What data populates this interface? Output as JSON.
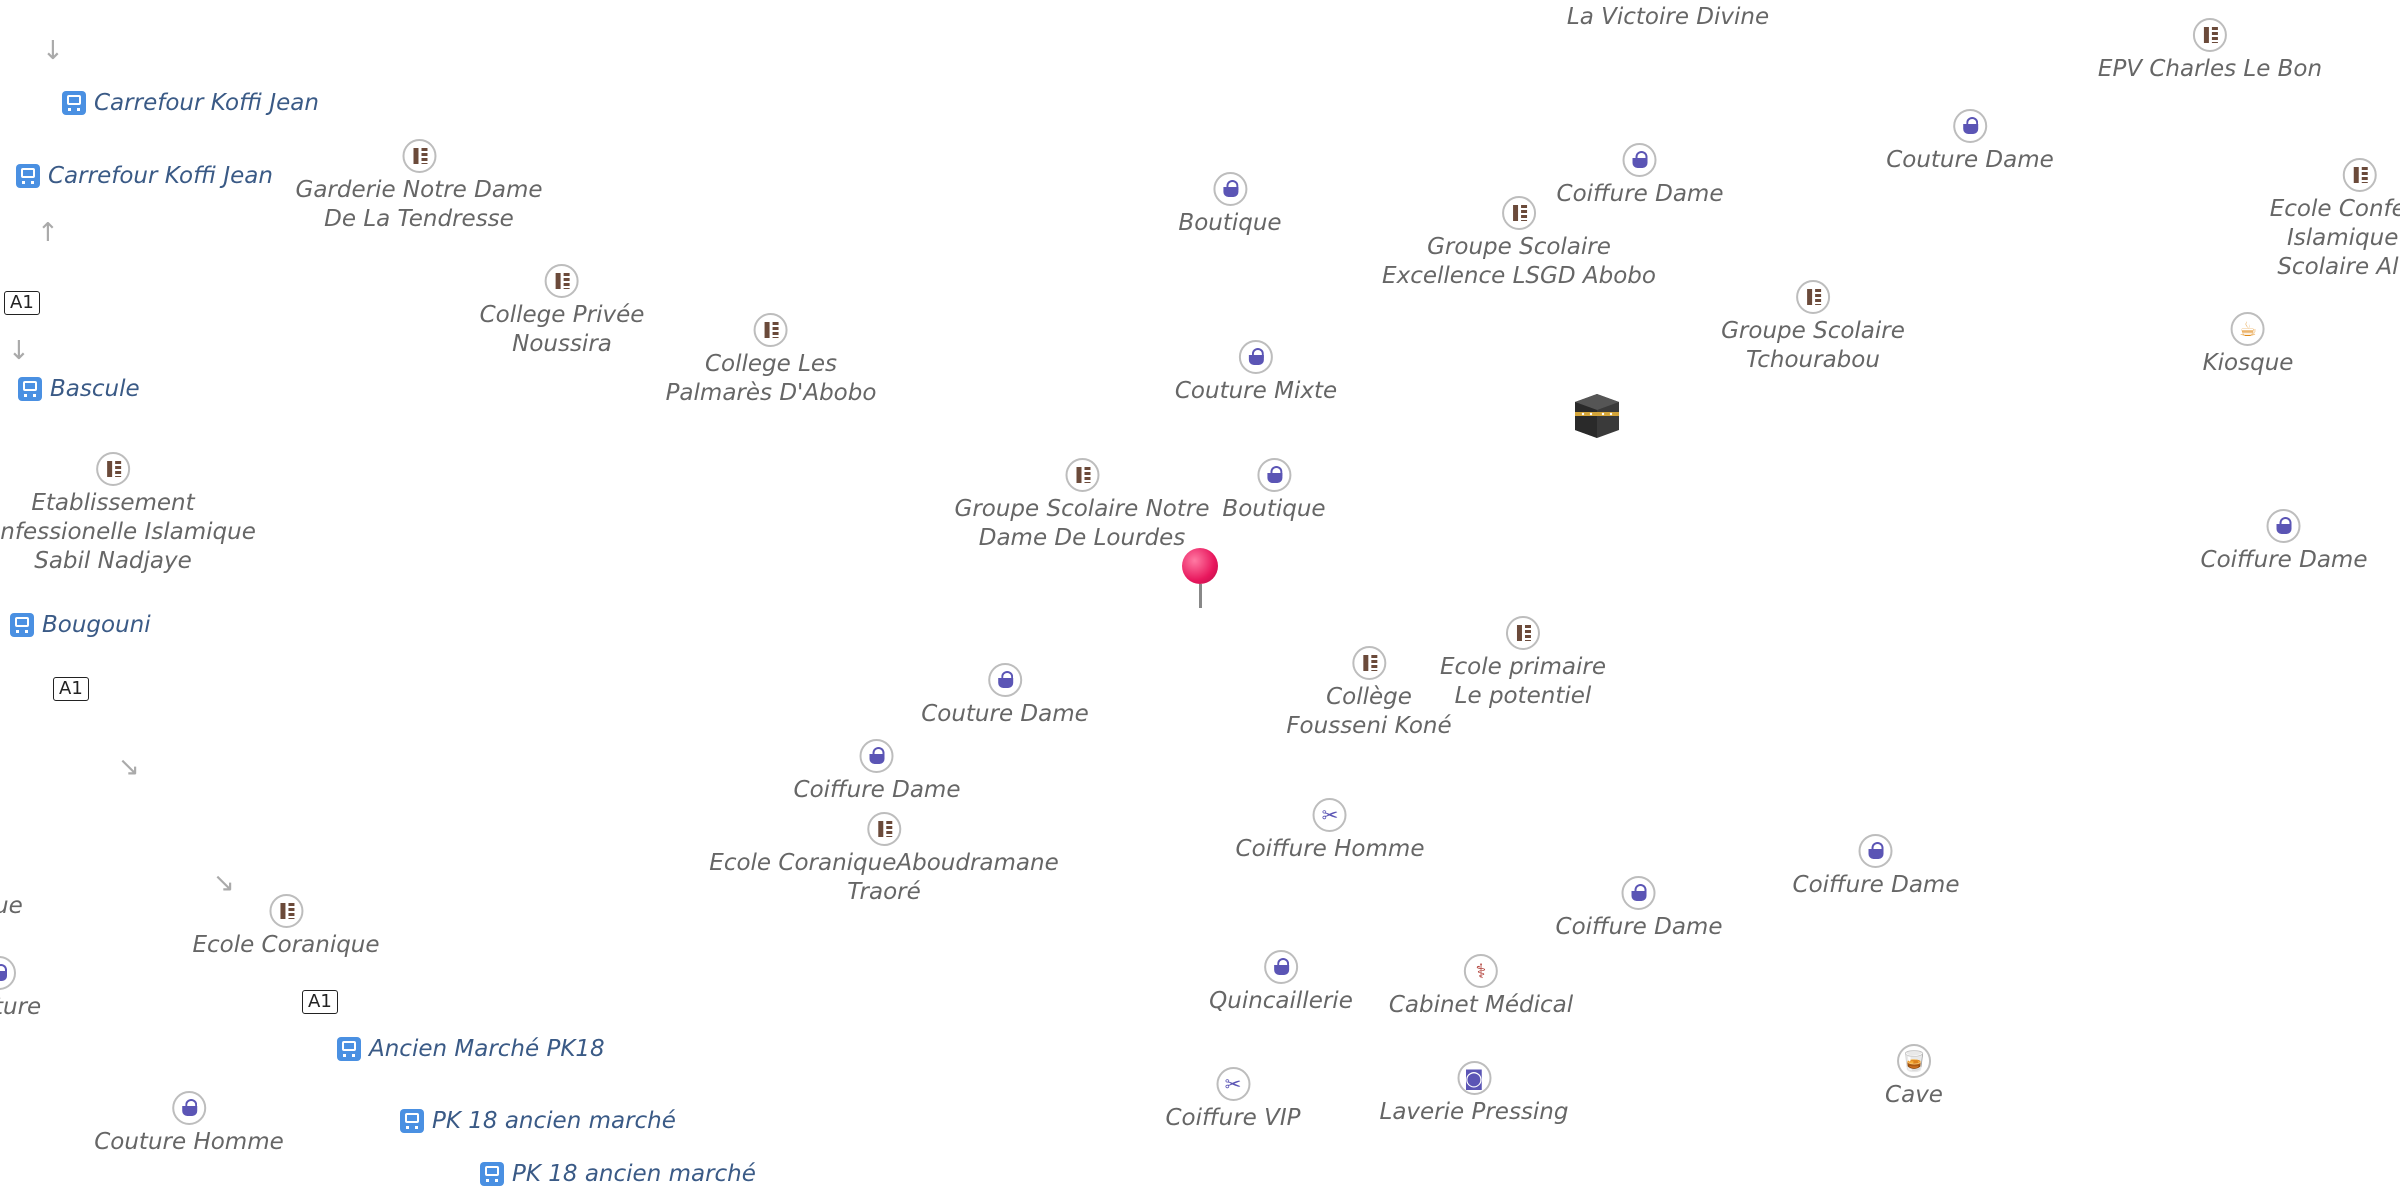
{
  "pois": [
    {
      "label": "La Victoire Divine",
      "type": "text-only"
    },
    {
      "label": "EPV Charles Le Bon",
      "type": "school"
    },
    {
      "label": "Couture Dame",
      "type": "shop"
    },
    {
      "label": "Ecole Confessio\nIslamique Gr\nScolaire Al Far",
      "type": "school"
    },
    {
      "label": "Coiffure Dame",
      "type": "shop"
    },
    {
      "label": "Garderie Notre Dame\nDe La Tendresse",
      "type": "school"
    },
    {
      "label": "Boutique",
      "type": "shop"
    },
    {
      "label": "Groupe Scolaire\nExcellence LSGD Abobo",
      "type": "school"
    },
    {
      "label": "College Privée\nNoussira",
      "type": "school"
    },
    {
      "label": "College Les\nPalmarès D'Abobo",
      "type": "school"
    },
    {
      "label": "Couture Mixte",
      "type": "shop"
    },
    {
      "label": "Groupe Scolaire\nTchourabou",
      "type": "school"
    },
    {
      "label": "Kiosque",
      "type": "cafe"
    },
    {
      "label": "Etablissement\nConfessionelle Islamique\nSabil Nadjaye",
      "type": "school"
    },
    {
      "label": "Groupe Scolaire Notre\nDame De Lourdes",
      "type": "school"
    },
    {
      "label": "Boutique",
      "type": "shop"
    },
    {
      "label": "Coiffure Dame",
      "type": "shop"
    },
    {
      "label": "Ecole primaire\nLe potentiel",
      "type": "school"
    },
    {
      "label": "Collège\nFousseni Koné",
      "type": "school"
    },
    {
      "label": "Couture Dame",
      "type": "shop"
    },
    {
      "label": "Coiffure Dame",
      "type": "shop"
    },
    {
      "label": "Coiffure Homme",
      "type": "scissors"
    },
    {
      "label": "Ecole CoraniqueAboudramane\nTraoré",
      "type": "school"
    },
    {
      "label": "Coiffure Dame",
      "type": "shop"
    },
    {
      "label": "Coiffure Dame",
      "type": "shop"
    },
    {
      "label": "Ecole Coranique",
      "type": "school"
    },
    {
      "label": "Quincaillerie",
      "type": "shop"
    },
    {
      "label": "Cabinet Médical",
      "type": "medical"
    },
    {
      "label": "Cave",
      "type": "drink"
    },
    {
      "label": "Couture Homme",
      "type": "shop"
    },
    {
      "label": "Coiffure VIP",
      "type": "scissors"
    },
    {
      "label": "Laverie Pressing",
      "type": "laundry"
    },
    {
      "label": "ue",
      "type": "text-only"
    },
    {
      "label": "ture",
      "type": "shop"
    }
  ],
  "bus_stops": [
    {
      "label": "Carrefour Koffi Jean"
    },
    {
      "label": "Carrefour Koffi Jean"
    },
    {
      "label": "Bascule"
    },
    {
      "label": "Bougouni"
    },
    {
      "label": "Ancien Marché PK18"
    },
    {
      "label": "PK 18 ancien marché"
    },
    {
      "label": "PK 18 ancien marché"
    }
  ],
  "road_shields": [
    "A1",
    "A1",
    "A1"
  ],
  "arrows": [
    "↓",
    "↑",
    "↓",
    "↘",
    "↘"
  ],
  "colors": {
    "bus": "#4a90e2",
    "shop": "#5b55b5",
    "school": "#6b4a3a",
    "pin": "#e8175d"
  }
}
